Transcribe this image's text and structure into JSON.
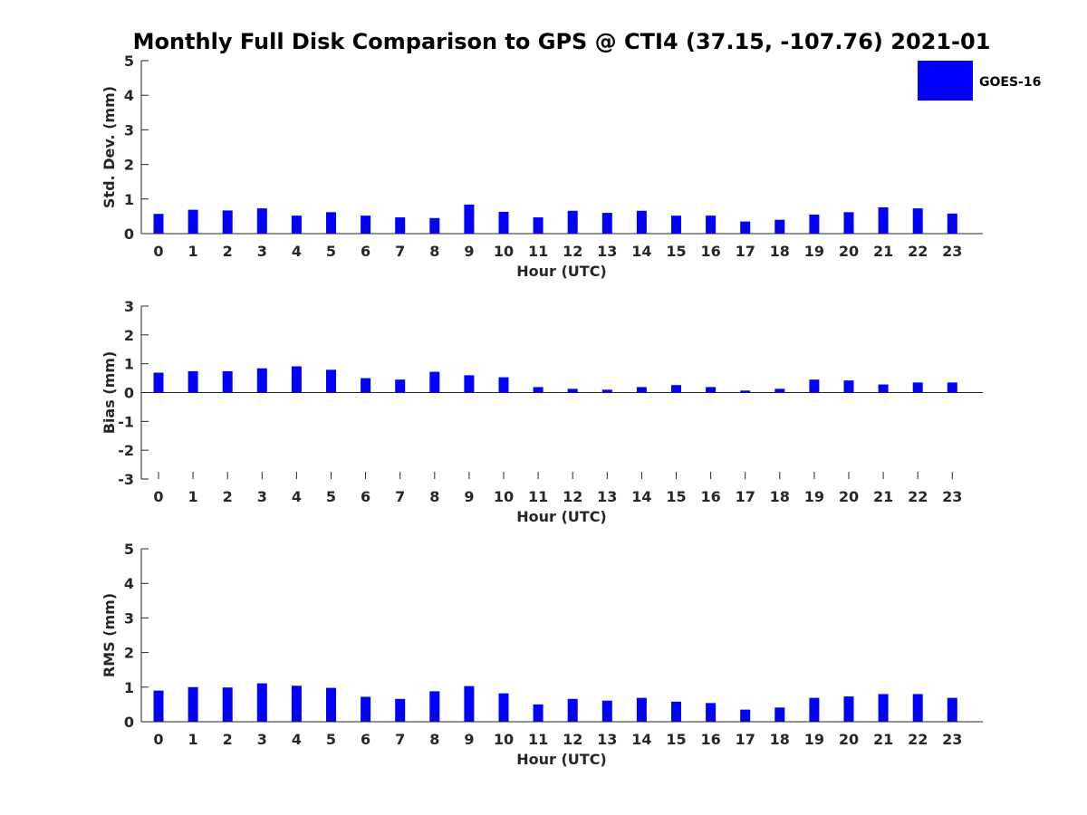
{
  "title": "Monthly Full Disk Comparison to GPS @ CTI4 (37.15, -107.76) 2021-01",
  "legend": {
    "label": "GOES-16",
    "color": "#0000ff",
    "placement": "top-right"
  },
  "chart_data": [
    {
      "type": "bar",
      "xlabel": "Hour (UTC)",
      "ylabel": "Std. Dev. (mm)",
      "ylim": [
        0,
        5
      ],
      "yticks": [
        "0",
        "1",
        "2",
        "3",
        "4",
        "5"
      ],
      "categories": [
        "0",
        "1",
        "2",
        "3",
        "4",
        "5",
        "6",
        "7",
        "8",
        "9",
        "10",
        "11",
        "12",
        "13",
        "14",
        "15",
        "16",
        "17",
        "18",
        "19",
        "20",
        "21",
        "22",
        "23"
      ],
      "series": [
        {
          "name": "GOES-16",
          "color": "#0000ff",
          "values": [
            0.57,
            0.69,
            0.67,
            0.73,
            0.52,
            0.62,
            0.52,
            0.47,
            0.45,
            0.84,
            0.63,
            0.47,
            0.66,
            0.6,
            0.66,
            0.52,
            0.52,
            0.35,
            0.4,
            0.55,
            0.62,
            0.76,
            0.73,
            0.58
          ]
        }
      ]
    },
    {
      "type": "bar",
      "xlabel": "Hour (UTC)",
      "ylabel": "Bias (mm)",
      "ylim": [
        -3,
        3
      ],
      "yticks": [
        "-3",
        "-2",
        "-1",
        "0",
        "1",
        "2",
        "3"
      ],
      "categories": [
        "0",
        "1",
        "2",
        "3",
        "4",
        "5",
        "6",
        "7",
        "8",
        "9",
        "10",
        "11",
        "12",
        "13",
        "14",
        "15",
        "16",
        "17",
        "18",
        "19",
        "20",
        "21",
        "22",
        "23"
      ],
      "series": [
        {
          "name": "GOES-16",
          "color": "#0000ff",
          "values": [
            0.69,
            0.74,
            0.74,
            0.84,
            0.91,
            0.79,
            0.5,
            0.45,
            0.72,
            0.6,
            0.53,
            0.19,
            0.13,
            0.1,
            0.19,
            0.26,
            0.19,
            0.07,
            0.13,
            0.45,
            0.42,
            0.28,
            0.35,
            0.35
          ]
        }
      ]
    },
    {
      "type": "bar",
      "xlabel": "Hour (UTC)",
      "ylabel": "RMS (mm)",
      "ylim": [
        0,
        5
      ],
      "yticks": [
        "0",
        "1",
        "2",
        "3",
        "4",
        "5"
      ],
      "categories": [
        "0",
        "1",
        "2",
        "3",
        "4",
        "5",
        "6",
        "7",
        "8",
        "9",
        "10",
        "11",
        "12",
        "13",
        "14",
        "15",
        "16",
        "17",
        "18",
        "19",
        "20",
        "21",
        "22",
        "23"
      ],
      "series": [
        {
          "name": "GOES-16",
          "color": "#0000ff",
          "values": [
            0.9,
            1.0,
            0.99,
            1.11,
            1.04,
            0.98,
            0.72,
            0.66,
            0.88,
            1.03,
            0.82,
            0.5,
            0.66,
            0.61,
            0.69,
            0.58,
            0.54,
            0.35,
            0.41,
            0.69,
            0.73,
            0.8,
            0.8,
            0.69
          ]
        }
      ]
    }
  ]
}
